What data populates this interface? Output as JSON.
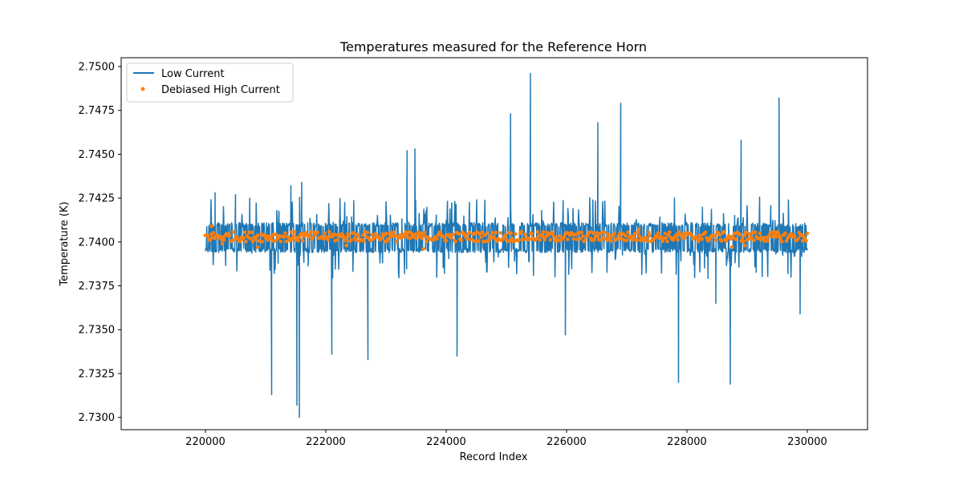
{
  "chart_data": {
    "type": "line",
    "title": "Temperatures measured for the Reference Horn",
    "xlabel": "Record Index",
    "ylabel": "Temperature (K)",
    "xlim": [
      218600,
      231000
    ],
    "ylim": [
      2.7293,
      2.7505
    ],
    "x_ticks": [
      220000,
      222000,
      224000,
      226000,
      228000,
      230000
    ],
    "y_ticks": [
      2.73,
      2.7325,
      2.735,
      2.7375,
      2.74,
      2.7425,
      2.745,
      2.7475,
      2.75
    ],
    "x_tick_labels": [
      "220000",
      "222000",
      "224000",
      "226000",
      "228000",
      "230000"
    ],
    "y_tick_labels": [
      "2.7300",
      "2.7325",
      "2.7350",
      "2.7375",
      "2.7400",
      "2.7425",
      "2.7450",
      "2.7475",
      "2.7500"
    ],
    "grid": false,
    "legend_position": "upper-left",
    "series": [
      {
        "name": "Low Current",
        "kind": "line",
        "color": "#1f77b4",
        "x_range": [
          220000,
          230000
        ],
        "baseline": 2.7402,
        "band": [
          2.7394,
          2.7411
        ],
        "spikes": [
          {
            "x": 220160,
            "y": 2.7428
          },
          {
            "x": 220500,
            "y": 2.7427
          },
          {
            "x": 221100,
            "y": 2.7313
          },
          {
            "x": 221420,
            "y": 2.7432
          },
          {
            "x": 221520,
            "y": 2.7307
          },
          {
            "x": 221560,
            "y": 2.73
          },
          {
            "x": 221600,
            "y": 2.7434
          },
          {
            "x": 222100,
            "y": 2.7336
          },
          {
            "x": 222700,
            "y": 2.7333
          },
          {
            "x": 223350,
            "y": 2.7452
          },
          {
            "x": 223480,
            "y": 2.7453
          },
          {
            "x": 224180,
            "y": 2.7335
          },
          {
            "x": 225070,
            "y": 2.7473
          },
          {
            "x": 225400,
            "y": 2.7496
          },
          {
            "x": 225980,
            "y": 2.7347
          },
          {
            "x": 226520,
            "y": 2.7468
          },
          {
            "x": 226900,
            "y": 2.7479
          },
          {
            "x": 227860,
            "y": 2.732
          },
          {
            "x": 228480,
            "y": 2.7365
          },
          {
            "x": 228720,
            "y": 2.7319
          },
          {
            "x": 228900,
            "y": 2.7458
          },
          {
            "x": 229530,
            "y": 2.7482
          },
          {
            "x": 229880,
            "y": 2.7359
          }
        ]
      },
      {
        "name": "Debiased High Current",
        "kind": "scatter",
        "color": "#ff7f0e",
        "x_range": [
          220000,
          230000
        ],
        "center": 2.7403,
        "spread": [
          2.74,
          2.7407
        ],
        "outliers": [
          {
            "x": 220100,
            "y": 2.7409
          },
          {
            "x": 220280,
            "y": 2.7399
          },
          {
            "x": 220870,
            "y": 2.7397
          },
          {
            "x": 222340,
            "y": 2.7398
          },
          {
            "x": 223620,
            "y": 2.7396
          },
          {
            "x": 227200,
            "y": 2.7407
          },
          {
            "x": 228750,
            "y": 2.7397
          },
          {
            "x": 228960,
            "y": 2.7398
          }
        ]
      }
    ]
  }
}
